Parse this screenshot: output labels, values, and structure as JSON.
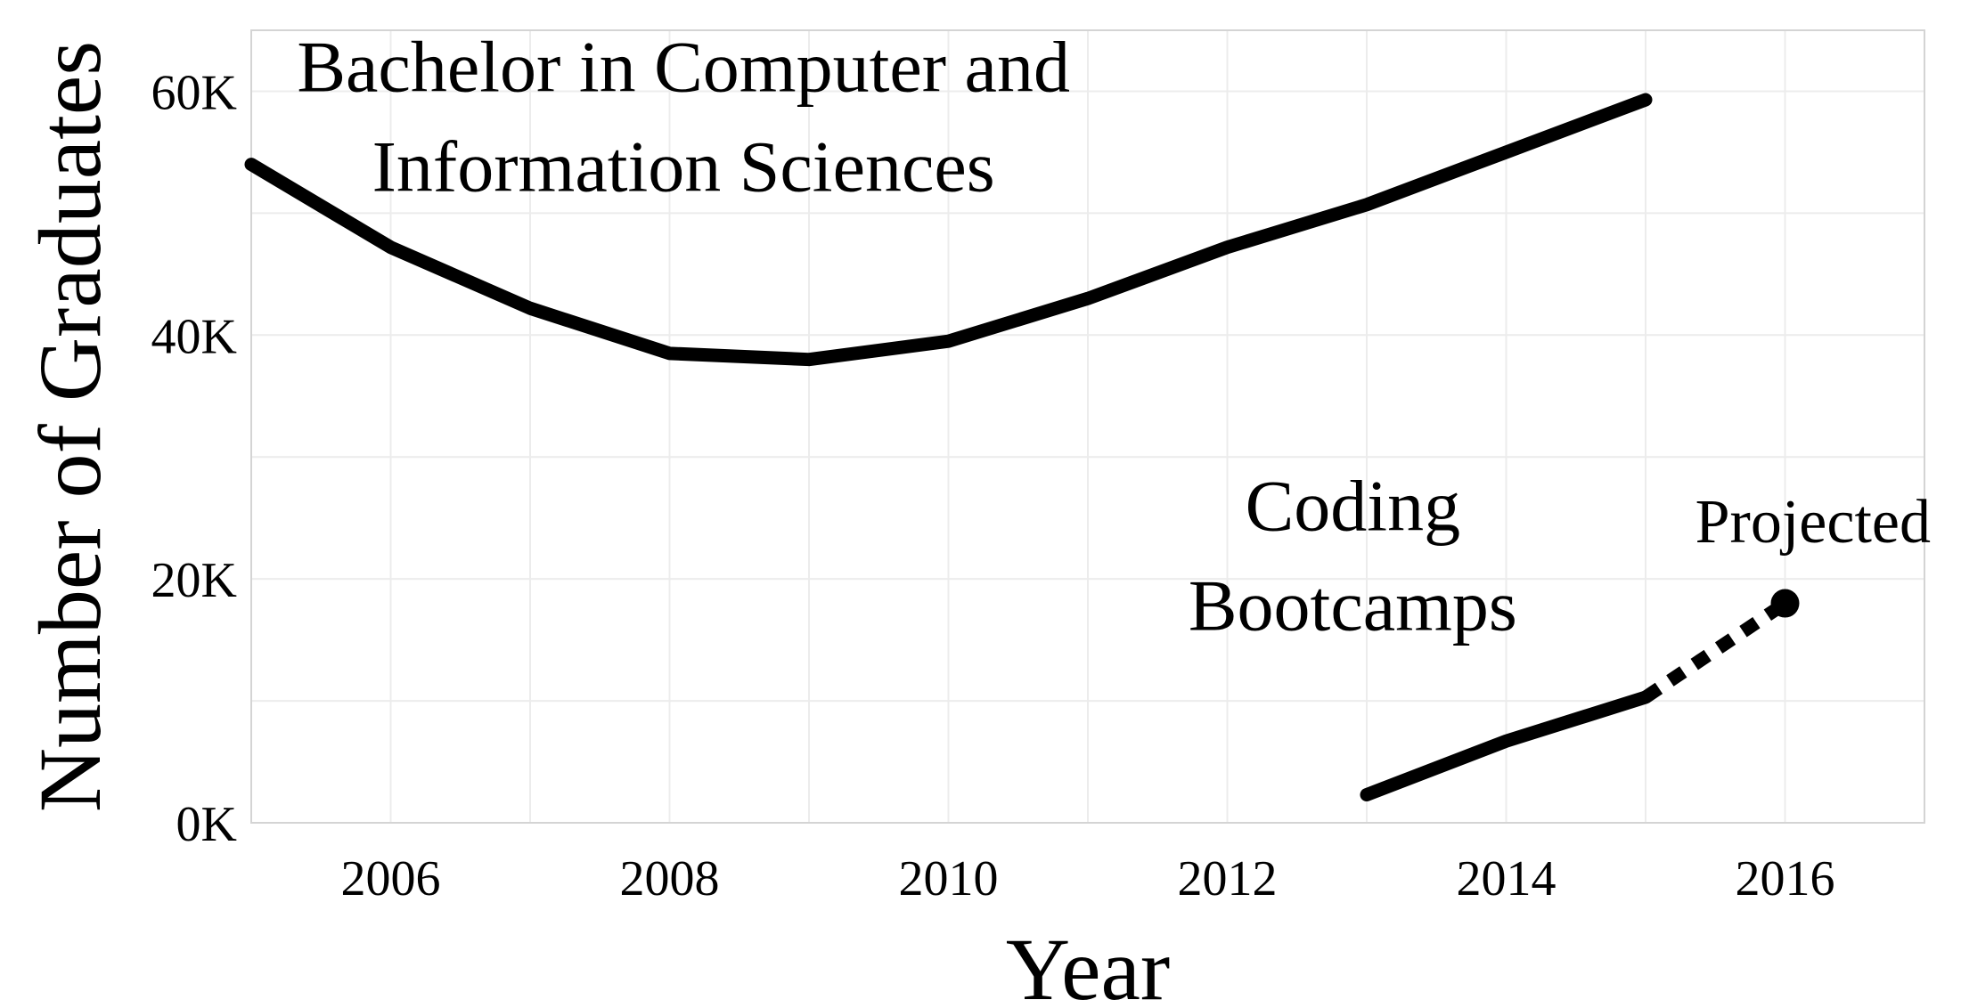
{
  "chart_data": {
    "type": "line",
    "xlabel": "Year",
    "ylabel": "Number of Graduates",
    "xlim": [
      2005,
      2017
    ],
    "ylim": [
      0,
      65000
    ],
    "x_ticks": [
      2006,
      2008,
      2010,
      2012,
      2014,
      2016
    ],
    "x_tick_labels": [
      "2006",
      "2008",
      "2010",
      "2012",
      "2014",
      "2016"
    ],
    "y_ticks": [
      0,
      20000,
      40000,
      60000
    ],
    "y_tick_labels": [
      "0K",
      "20K",
      "40K",
      "60K"
    ],
    "grid": true,
    "series": [
      {
        "x": [
          2005,
          2006,
          2007,
          2008,
          2009,
          2010,
          2011,
          2012,
          2013,
          2014,
          2015
        ],
        "values": [
          54000,
          47200,
          42200,
          38500,
          38000,
          39500,
          43000,
          47200,
          50700,
          55000,
          59300
        ],
        "style": "solid",
        "color": "#000000"
      },
      {
        "x": [
          2013,
          2014,
          2015
        ],
        "values": [
          2300,
          6700,
          10300
        ],
        "style": "solid",
        "color": "#000000"
      },
      {
        "x": [
          2015,
          2016
        ],
        "values": [
          10300,
          18000
        ],
        "style": "dotted",
        "color": "#000000",
        "endpoint_marker": true
      }
    ],
    "annotations": [
      {
        "lines": [
          "Bachelor in Computer and",
          "Information Sciences"
        ],
        "x": 2008.1,
        "y": 60000,
        "size": "large"
      },
      {
        "lines": [
          "Coding",
          "Bootcamps"
        ],
        "x": 2012.9,
        "y": 24000,
        "size": "large"
      },
      {
        "lines": [
          "Projected"
        ],
        "x": 2016.2,
        "y": 23000,
        "size": "small"
      }
    ]
  }
}
